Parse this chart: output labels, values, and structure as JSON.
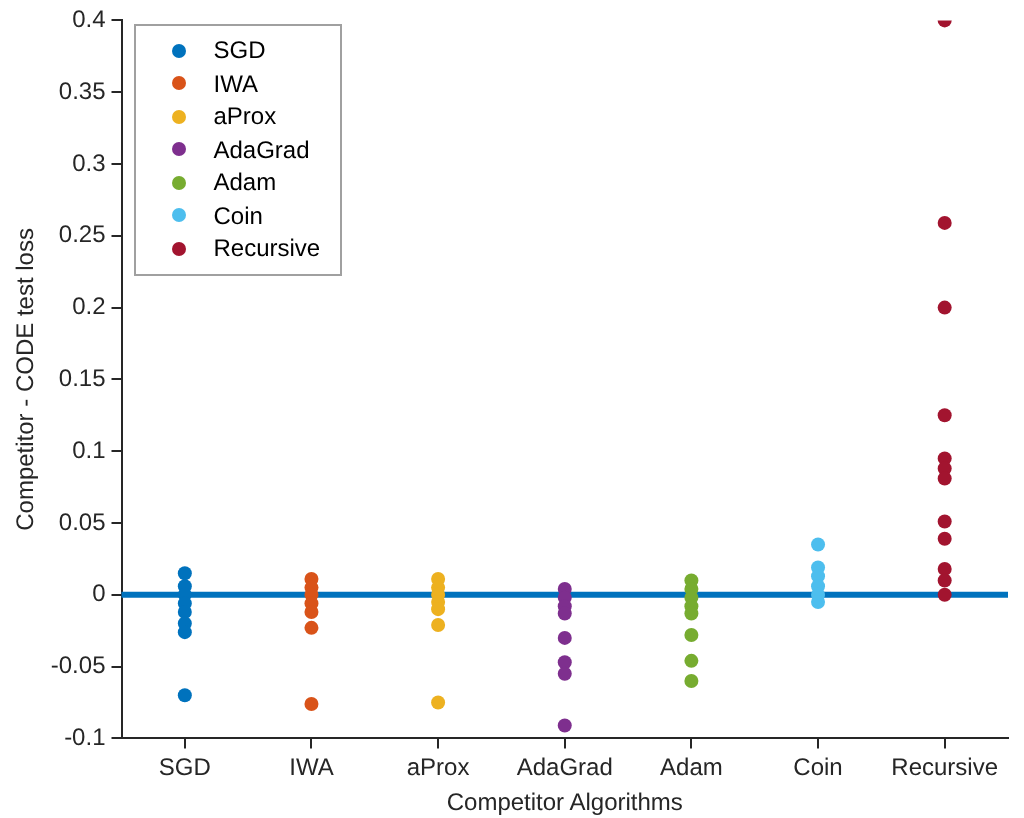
{
  "chart_data": {
    "type": "scatter",
    "xlabel": "Competitor Algorithms",
    "ylabel": "Competitor - CODE test loss",
    "categories": [
      "SGD",
      "IWA",
      "aProx",
      "AdaGrad",
      "Adam",
      "Coin",
      "Recursive"
    ],
    "ylim": [
      -0.1,
      0.4
    ],
    "yticks": [
      -0.1,
      -0.05,
      0,
      0.05,
      0.1,
      0.15,
      0.2,
      0.25,
      0.3,
      0.35,
      0.4
    ],
    "series": [
      {
        "name": "SGD",
        "color": "#0072bd",
        "x": [
          "SGD",
          "SGD",
          "SGD",
          "SGD",
          "SGD",
          "SGD",
          "SGD",
          "SGD"
        ],
        "values": [
          0.015,
          0.006,
          0.0,
          -0.006,
          -0.012,
          -0.02,
          -0.026,
          -0.07
        ]
      },
      {
        "name": "IWA",
        "color": "#d95319",
        "x": [
          "IWA",
          "IWA",
          "IWA",
          "IWA",
          "IWA",
          "IWA",
          "IWA"
        ],
        "values": [
          0.011,
          0.005,
          0.0,
          -0.006,
          -0.012,
          -0.023,
          -0.076
        ]
      },
      {
        "name": "aProx",
        "color": "#edb120",
        "x": [
          "aProx",
          "aProx",
          "aProx",
          "aProx",
          "aProx",
          "aProx",
          "aProx"
        ],
        "values": [
          0.011,
          0.005,
          0.0,
          -0.005,
          -0.01,
          -0.021,
          -0.075
        ]
      },
      {
        "name": "AdaGrad",
        "color": "#7e2f8e",
        "x": [
          "AdaGrad",
          "AdaGrad",
          "AdaGrad",
          "AdaGrad",
          "AdaGrad",
          "AdaGrad",
          "AdaGrad",
          "AdaGrad"
        ],
        "values": [
          0.004,
          -0.002,
          -0.008,
          -0.013,
          -0.03,
          -0.047,
          -0.055,
          -0.091
        ]
      },
      {
        "name": "Adam",
        "color": "#77ac30",
        "x": [
          "Adam",
          "Adam",
          "Adam",
          "Adam",
          "Adam",
          "Adam",
          "Adam",
          "Adam"
        ],
        "values": [
          0.01,
          0.004,
          -0.002,
          -0.008,
          -0.013,
          -0.028,
          -0.046,
          -0.06
        ]
      },
      {
        "name": "Coin",
        "color": "#4dbeee",
        "x": [
          "Coin",
          "Coin",
          "Coin",
          "Coin",
          "Coin",
          "Coin"
        ],
        "values": [
          0.035,
          0.019,
          0.013,
          0.006,
          0.0,
          -0.005
        ]
      },
      {
        "name": "Recursive",
        "color": "#a2142f",
        "x": [
          "Recursive",
          "Recursive",
          "Recursive",
          "Recursive",
          "Recursive",
          "Recursive",
          "Recursive",
          "Recursive",
          "Recursive",
          "Recursive",
          "Recursive",
          "Recursive"
        ],
        "values": [
          0.4,
          0.259,
          0.2,
          0.125,
          0.095,
          0.088,
          0.081,
          0.051,
          0.039,
          0.018,
          0.01,
          0.0
        ]
      }
    ],
    "ref_lines": [
      {
        "axis": "y",
        "value": 0,
        "color": "#0072bd"
      }
    ],
    "legend": "top left",
    "grid": false,
    "marker": "circle"
  }
}
